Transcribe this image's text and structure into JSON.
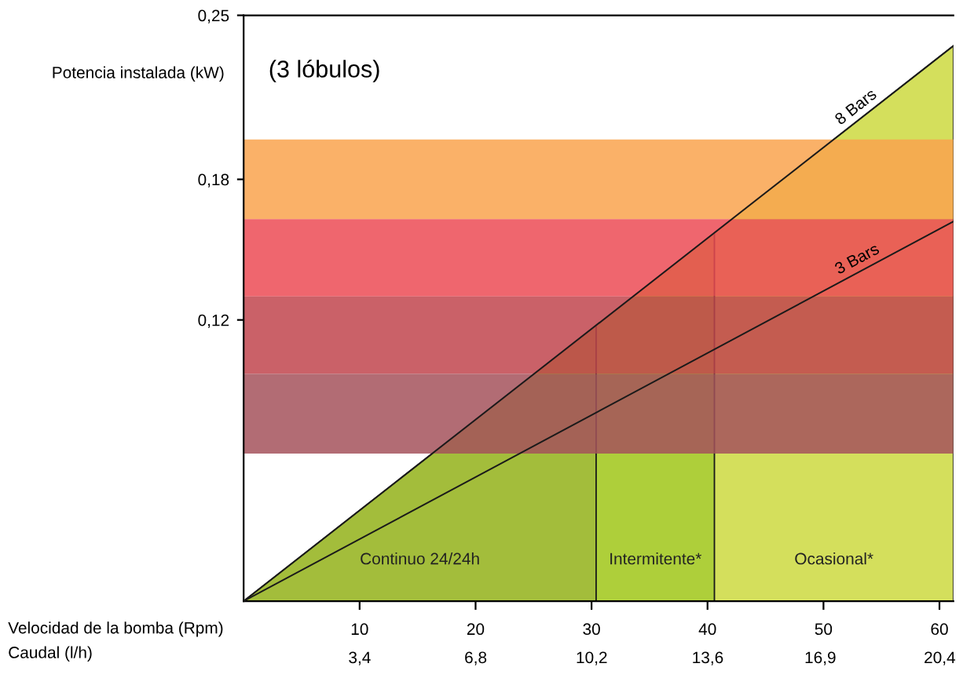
{
  "chart_data": {
    "type": "line",
    "title": "(3 lóbulos)",
    "xlabel": "Velocidad de la bomba (Rpm)",
    "x2label": "Caudal (l/h)",
    "ylabel": "Potencia instalada (kW)",
    "xlim": [
      0,
      61.2
    ],
    "xticks": [
      10,
      20,
      30,
      40,
      50,
      60
    ],
    "x2lim": [
      0,
      20.8
    ],
    "x2ticks": [
      {
        "value": 3.4,
        "label": "3,4"
      },
      {
        "value": 6.8,
        "label": "6,8"
      },
      {
        "value": 10.2,
        "label": "10,2"
      },
      {
        "value": 13.6,
        "label": "13,6"
      },
      {
        "value": 16.9,
        "label": "16,9"
      },
      {
        "value": 20.4,
        "label": "20,4"
      }
    ],
    "ylim": [
      0,
      0.25
    ],
    "yticks": [
      {
        "value": 0.12,
        "label": "0,12"
      },
      {
        "value": 0.18,
        "label": "0,18"
      },
      {
        "value": 0.25,
        "label": "0,25"
      }
    ],
    "grid": false,
    "marker": "none",
    "line_style": "solid",
    "series": [
      {
        "type": "area",
        "color": "#a3bd3b",
        "x": [
          0,
          30.4
        ],
        "values": [
          0,
          0.1177
        ]
      },
      {
        "type": "area",
        "color": "#aecf3a",
        "x": [
          30.4,
          40.6
        ],
        "values": [
          0.1177,
          0.1572
        ]
      },
      {
        "type": "area",
        "color": "#d4df5c",
        "x": [
          40.6,
          61.2
        ],
        "values": [
          0.1572,
          0.237
        ]
      },
      {
        "name": "8 Bars",
        "color": "#1a1a1a",
        "x": [
          0,
          61.2
        ],
        "values": [
          0,
          0.237
        ]
      },
      {
        "name": "3 Bars",
        "color": "#1a1a1a",
        "x": [
          0,
          61.2
        ],
        "values": [
          0,
          0.162
        ]
      }
    ],
    "bands": [
      {
        "axis": "y",
        "from": 0.163,
        "to": 0.197,
        "color": "#f9a34e"
      },
      {
        "axis": "y",
        "from": 0.13,
        "to": 0.163,
        "color": "#ec4b55"
      },
      {
        "axis": "y",
        "from": 0.097,
        "to": 0.13,
        "color": "#c1454d"
      },
      {
        "axis": "y",
        "from": 0.063,
        "to": 0.097,
        "color": "#a5525c"
      }
    ],
    "annotations": [
      "Continuo 24/24h",
      "Intermitente*",
      "Ocasional*"
    ]
  }
}
